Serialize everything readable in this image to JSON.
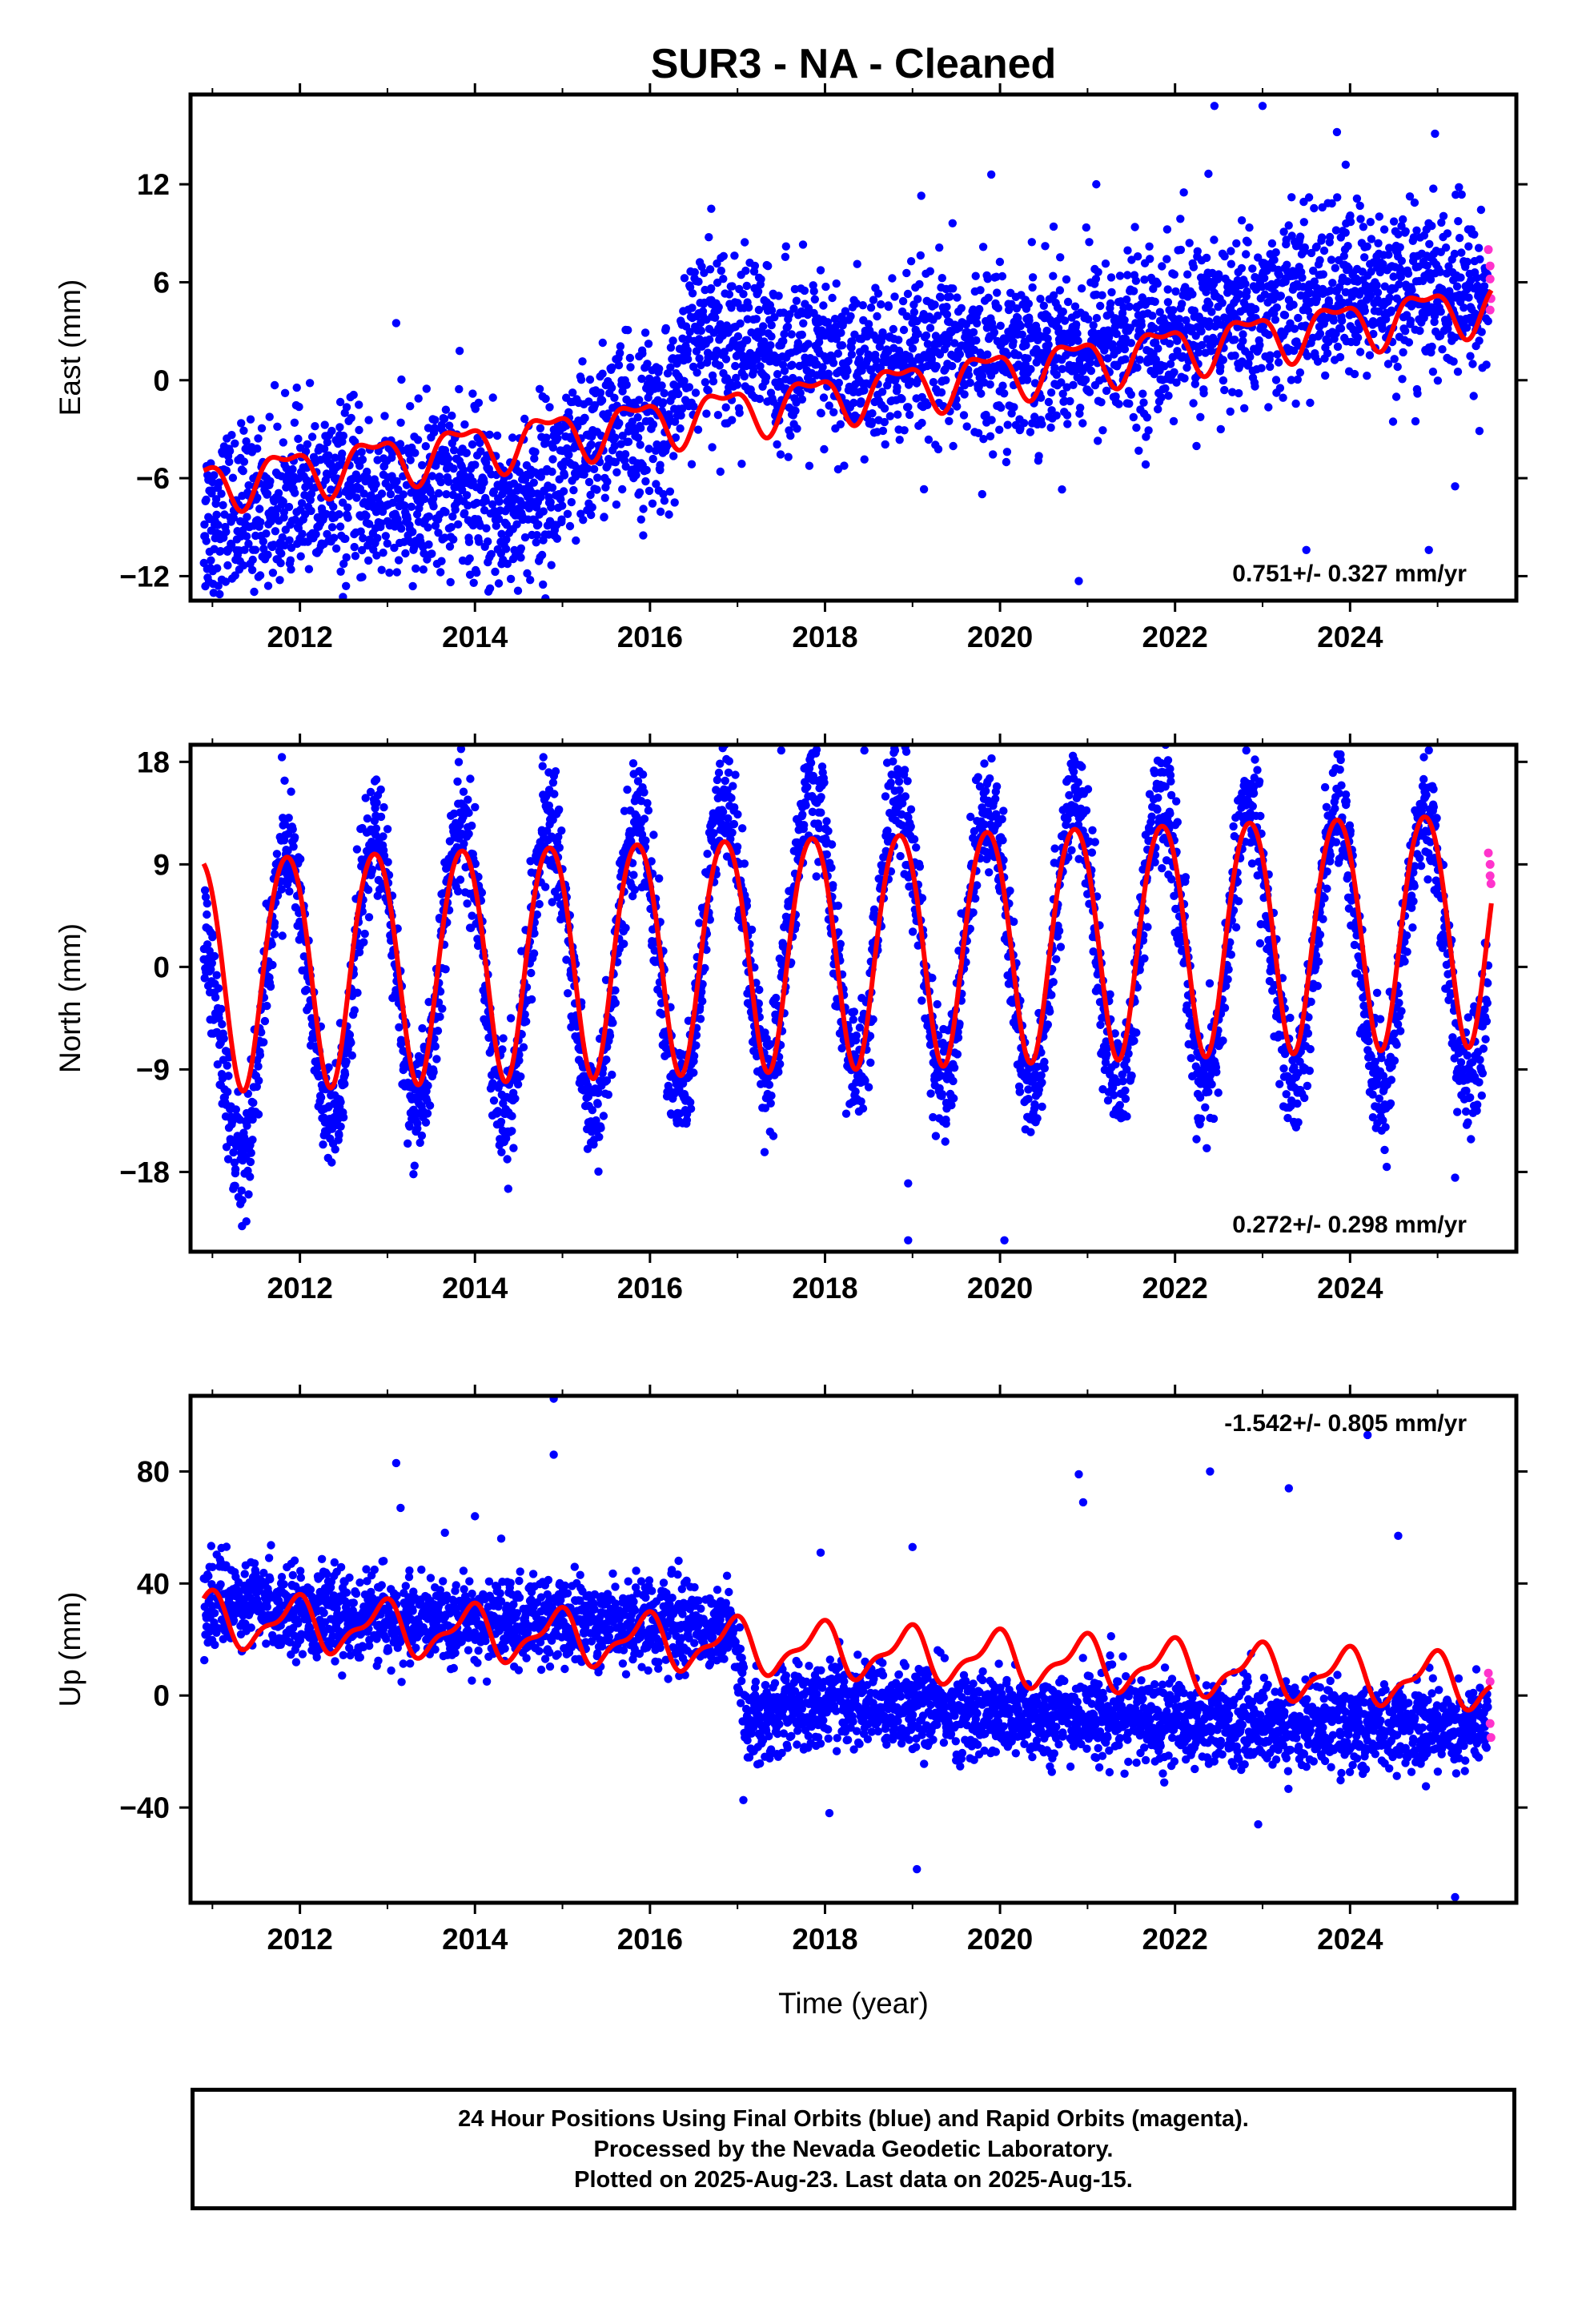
{
  "chart_data": {
    "title": "SUR3  - NA - Cleaned",
    "xlabel": "Time (year)",
    "xlim": [
      2010.75,
      2025.9
    ],
    "x_ticks": [
      "2012",
      "2014",
      "2016",
      "2018",
      "2020",
      "2022",
      "2024"
    ],
    "colors": {
      "final_orbits": "#0000ff",
      "rapid_orbits": "#ff33cc",
      "model_fit": "#ff0000"
    },
    "panels": [
      {
        "name": "east",
        "type": "scatter",
        "ylabel": "East (mm)",
        "ylim": [
          -13.5,
          17.5
        ],
        "y_ticks": [
          "12",
          "6",
          "0",
          "−6",
          "−12"
        ],
        "y_tick_values": [
          12,
          6,
          0,
          -6,
          -12
        ],
        "rate_text": "0.751+/- 0.327 mm/yr",
        "rate_position": "bottom-right",
        "model": {
          "offset_at_2011": -6.3,
          "trend_mm_per_yr": 0.751,
          "annual_amp": 1.4,
          "annual_phase": 2.6,
          "semiannual_amp": 0.6,
          "semiannual_phase": 0.4,
          "step_year": 2016.45,
          "step_mm": 0
        },
        "scatter_envelope": [
          [
            2010.9,
            -8.5
          ],
          [
            2011.5,
            -8
          ],
          [
            2012.5,
            -7
          ],
          [
            2013.2,
            -8
          ],
          [
            2013.7,
            -6
          ],
          [
            2014.3,
            -8
          ],
          [
            2015.0,
            -6
          ],
          [
            2015.5,
            -3
          ],
          [
            2016.2,
            -2.5
          ],
          [
            2016.6,
            3.5
          ],
          [
            2017.5,
            1.5
          ],
          [
            2018.5,
            0.5
          ],
          [
            2019.5,
            1.5
          ],
          [
            2020.5,
            2
          ],
          [
            2021.5,
            2.5
          ],
          [
            2022.5,
            3.5
          ],
          [
            2023.5,
            5
          ],
          [
            2024.5,
            5.5
          ],
          [
            2025.5,
            5
          ]
        ],
        "scatter_spread": 2.6,
        "rapid_points": [
          [
            2025.58,
            8
          ],
          [
            2025.6,
            7
          ],
          [
            2025.6,
            6.2
          ],
          [
            2025.61,
            5
          ],
          [
            2025.6,
            4.3
          ]
        ],
        "outliers": [
          [
            2013.1,
            3.5
          ],
          [
            2016.7,
            10.5
          ],
          [
            2019.1,
            11.3
          ],
          [
            2019.9,
            12.6
          ],
          [
            2020.9,
            -12.3
          ],
          [
            2021.1,
            12
          ],
          [
            2022.1,
            11.5
          ],
          [
            2022.45,
            16.8
          ],
          [
            2023.0,
            16.8
          ],
          [
            2023.5,
            -10.4
          ],
          [
            2023.85,
            15.2
          ],
          [
            2023.95,
            13.2
          ],
          [
            2024.9,
            -10.4
          ],
          [
            2025.2,
            -6.5
          ]
        ]
      },
      {
        "name": "north",
        "type": "scatter",
        "ylabel": "North (mm)",
        "ylim": [
          -25,
          19.5
        ],
        "y_ticks": [
          "18",
          "9",
          "0",
          "−9",
          "−18"
        ],
        "y_tick_values": [
          18,
          9,
          0,
          -9,
          -18
        ],
        "rate_text": "0.272+/- 0.298 mm/yr",
        "rate_position": "bottom-right",
        "model": {
          "offset_at_2011": 0,
          "trend_mm_per_yr": 0.272,
          "annual_amp": 10.2,
          "annual_phase": 2.5,
          "semiannual_amp": 0.8,
          "semiannual_phase": 0.3,
          "step_year": 2099,
          "step_mm": 0
        },
        "scatter_envelope": [
          [
            2010.9,
            -10
          ],
          [
            2011.5,
            -2
          ],
          [
            2012.5,
            -1.5
          ],
          [
            2013.5,
            0
          ],
          [
            2014.5,
            0
          ],
          [
            2015.5,
            0
          ],
          [
            2016.5,
            1
          ],
          [
            2017.5,
            4
          ],
          [
            2018.5,
            3
          ],
          [
            2019.5,
            2
          ],
          [
            2020.5,
            2
          ],
          [
            2021.5,
            2
          ],
          [
            2022.5,
            2
          ],
          [
            2023.5,
            1.5
          ],
          [
            2024.5,
            1.5
          ],
          [
            2025.5,
            2
          ]
        ],
        "scatter_seasonal_amp": 12.5,
        "scatter_spread": 2.6,
        "rapid_points": [
          [
            2025.58,
            10
          ],
          [
            2025.6,
            9
          ],
          [
            2025.6,
            8
          ],
          [
            2025.61,
            7.3
          ]
        ],
        "outliers": [
          [
            2018.95,
            -19
          ],
          [
            2018.95,
            -24
          ],
          [
            2020.05,
            -24
          ],
          [
            2025.2,
            -18.5
          ],
          [
            2017.5,
            19
          ],
          [
            2018.45,
            19
          ]
        ]
      },
      {
        "name": "up",
        "type": "scatter",
        "ylabel": "Up (mm)",
        "ylim": [
          -74,
          107
        ],
        "y_ticks": [
          "80",
          "40",
          "0",
          "−40"
        ],
        "y_tick_values": [
          80,
          40,
          0,
          -40
        ],
        "rate_text": "-1.542+/- 0.805 mm/yr",
        "rate_position": "top-right",
        "model": {
          "offset_at_2011": 27,
          "trend_mm_per_yr": -1.542,
          "annual_amp": 8.5,
          "annual_phase": 2.0,
          "semiannual_amp": 3.5,
          "semiannual_phase": 1.0,
          "step_year": 2099,
          "step_mm": 0
        },
        "scatter_envelope": [
          [
            2010.9,
            33
          ],
          [
            2011.5,
            33
          ],
          [
            2012.5,
            28
          ],
          [
            2013.5,
            26
          ],
          [
            2014.5,
            26
          ],
          [
            2015.5,
            27
          ],
          [
            2016.5,
            26
          ],
          [
            2016.95,
            22
          ],
          [
            2017.1,
            -8
          ],
          [
            2018.0,
            -2
          ],
          [
            2019.0,
            -4
          ],
          [
            2020.0,
            -8
          ],
          [
            2021.0,
            -7
          ],
          [
            2022.0,
            -9
          ],
          [
            2023.0,
            -10
          ],
          [
            2024.0,
            -11
          ],
          [
            2025.5,
            -11
          ]
        ],
        "scatter_spread": 7.5,
        "rapid_points": [
          [
            2025.58,
            8
          ],
          [
            2025.6,
            5
          ],
          [
            2025.6,
            -10
          ],
          [
            2025.61,
            -15
          ]
        ],
        "outliers": [
          [
            2013.1,
            83
          ],
          [
            2013.15,
            67
          ],
          [
            2014.0,
            64
          ],
          [
            2014.3,
            56
          ],
          [
            2014.9,
            106
          ],
          [
            2014.9,
            86
          ],
          [
            2017.95,
            51
          ],
          [
            2019.0,
            53
          ],
          [
            2019.05,
            -62
          ],
          [
            2020.9,
            79
          ],
          [
            2020.95,
            69
          ],
          [
            2022.4,
            80
          ],
          [
            2023.3,
            74
          ],
          [
            2024.2,
            93
          ],
          [
            2024.55,
            57
          ],
          [
            2025.2,
            -72
          ],
          [
            2022.95,
            -46
          ],
          [
            2018.05,
            -42
          ]
        ]
      }
    ]
  },
  "footer": {
    "line1": "24 Hour Positions Using Final Orbits (blue) and Rapid Orbits (magenta).",
    "line2": "Processed by the Nevada Geodetic Laboratory.",
    "line3": "Plotted on 2025-Aug-23. Last data on 2025-Aug-15."
  }
}
